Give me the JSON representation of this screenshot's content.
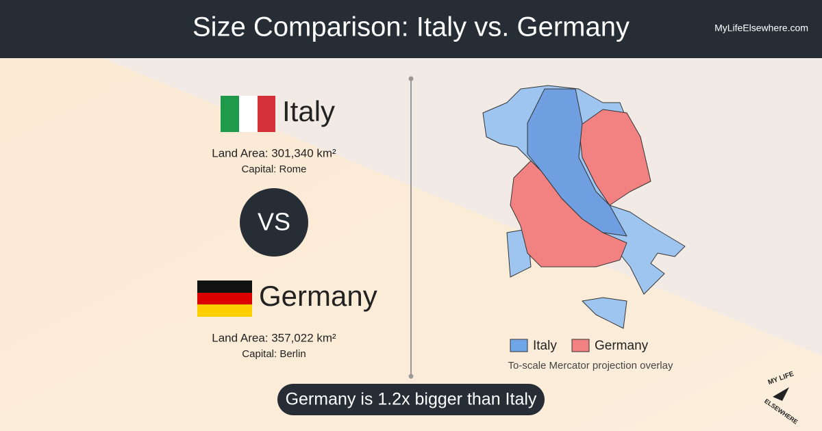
{
  "header": {
    "title": "Size Comparison: Italy vs. Germany",
    "site": "MyLifeElsewhere.com"
  },
  "countries": [
    {
      "name": "Italy",
      "land_area": "Land Area: 301,340 km²",
      "capital": "Capital: Rome"
    },
    {
      "name": "Germany",
      "land_area": "Land Area: 357,022 km²",
      "capital": "Capital: Berlin"
    }
  ],
  "vs": "VS",
  "legend": {
    "items": [
      "Italy",
      "Germany"
    ],
    "note": "To-scale Mercator projection overlay"
  },
  "footer": "Germany is 1.2x bigger than Italy",
  "logo": {
    "top": "MY LIFE",
    "bottom": "ELSEWHERE"
  }
}
